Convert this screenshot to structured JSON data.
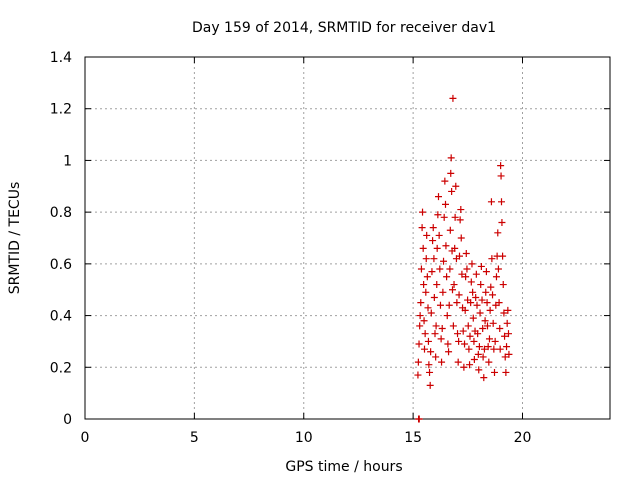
{
  "chart_data": {
    "type": "scatter",
    "title": "Day 159 of 2014, SRMTID for receiver dav1",
    "xlabel": "GPS time / hours",
    "ylabel": "SRMTID / TECUs",
    "xlim": [
      0,
      24
    ],
    "ylim": [
      0,
      1.4
    ],
    "xticks": [
      0,
      5,
      10,
      15,
      20
    ],
    "xtick_labels": [
      "0",
      "5",
      "10",
      "15",
      "20"
    ],
    "yticks": [
      0,
      0.2,
      0.4,
      0.6,
      0.8,
      1.0,
      1.2,
      1.4
    ],
    "ytick_labels": [
      "0",
      "0.2",
      "0.4",
      "0.6",
      "0.8",
      "1",
      "1.2",
      "1.4"
    ],
    "grid": true,
    "marker": "+",
    "color": "#cc0000",
    "series": [
      {
        "name": "dav1",
        "points": [
          [
            15.25,
            0.0
          ],
          [
            15.28,
            0.0
          ],
          [
            15.22,
            0.17
          ],
          [
            15.24,
            0.22
          ],
          [
            15.27,
            0.29
          ],
          [
            15.3,
            0.36
          ],
          [
            15.32,
            0.4
          ],
          [
            15.35,
            0.45
          ],
          [
            15.38,
            0.58
          ],
          [
            15.41,
            0.74
          ],
          [
            15.43,
            0.8
          ],
          [
            15.46,
            0.66
          ],
          [
            15.48,
            0.52
          ],
          [
            15.5,
            0.38
          ],
          [
            15.52,
            0.27
          ],
          [
            15.55,
            0.33
          ],
          [
            15.58,
            0.49
          ],
          [
            15.6,
            0.62
          ],
          [
            15.62,
            0.71
          ],
          [
            15.65,
            0.55
          ],
          [
            15.68,
            0.43
          ],
          [
            15.7,
            0.3
          ],
          [
            15.72,
            0.21
          ],
          [
            15.75,
            0.18
          ],
          [
            15.78,
            0.13
          ],
          [
            15.8,
            0.26
          ],
          [
            15.83,
            0.41
          ],
          [
            15.86,
            0.57
          ],
          [
            15.89,
            0.69
          ],
          [
            15.92,
            0.74
          ],
          [
            15.95,
            0.62
          ],
          [
            15.97,
            0.47
          ],
          [
            16.0,
            0.33
          ],
          [
            16.03,
            0.24
          ],
          [
            16.05,
            0.36
          ],
          [
            16.08,
            0.52
          ],
          [
            16.1,
            0.66
          ],
          [
            16.13,
            0.79
          ],
          [
            16.16,
            0.86
          ],
          [
            16.19,
            0.71
          ],
          [
            16.22,
            0.58
          ],
          [
            16.25,
            0.44
          ],
          [
            16.28,
            0.31
          ],
          [
            16.3,
            0.22
          ],
          [
            16.33,
            0.35
          ],
          [
            16.36,
            0.49
          ],
          [
            16.39,
            0.61
          ],
          [
            16.42,
            0.78
          ],
          [
            16.45,
            0.92
          ],
          [
            16.48,
            0.83
          ],
          [
            16.5,
            0.67
          ],
          [
            16.53,
            0.55
          ],
          [
            16.56,
            0.4
          ],
          [
            16.59,
            0.29
          ],
          [
            16.62,
            0.26
          ],
          [
            16.65,
            0.44
          ],
          [
            16.68,
            0.58
          ],
          [
            16.7,
            0.73
          ],
          [
            16.72,
            0.95
          ],
          [
            16.74,
            1.01
          ],
          [
            16.76,
            0.88
          ],
          [
            16.78,
            0.65
          ],
          [
            16.8,
            0.5
          ],
          [
            16.82,
            1.24
          ],
          [
            16.84,
            0.36
          ],
          [
            16.87,
            0.52
          ],
          [
            16.9,
            0.66
          ],
          [
            16.92,
            0.78
          ],
          [
            16.95,
            0.9
          ],
          [
            16.98,
            0.62
          ],
          [
            17.0,
            0.45
          ],
          [
            17.03,
            0.33
          ],
          [
            17.06,
            0.22
          ],
          [
            17.08,
            0.3
          ],
          [
            17.1,
            0.48
          ],
          [
            17.12,
            0.63
          ],
          [
            17.15,
            0.77
          ],
          [
            17.18,
            0.81
          ],
          [
            17.2,
            0.7
          ],
          [
            17.23,
            0.56
          ],
          [
            17.26,
            0.43
          ],
          [
            17.29,
            0.34
          ],
          [
            17.32,
            0.2
          ],
          [
            17.35,
            0.29
          ],
          [
            17.38,
            0.42
          ],
          [
            17.4,
            0.55
          ],
          [
            17.43,
            0.64
          ],
          [
            17.46,
            0.58
          ],
          [
            17.49,
            0.46
          ],
          [
            17.52,
            0.36
          ],
          [
            17.55,
            0.27
          ],
          [
            17.58,
            0.21
          ],
          [
            17.6,
            0.32
          ],
          [
            17.63,
            0.45
          ],
          [
            17.66,
            0.53
          ],
          [
            17.69,
            0.6
          ],
          [
            17.72,
            0.49
          ],
          [
            17.75,
            0.39
          ],
          [
            17.78,
            0.3
          ],
          [
            17.8,
            0.23
          ],
          [
            17.83,
            0.34
          ],
          [
            17.86,
            0.47
          ],
          [
            17.89,
            0.56
          ],
          [
            17.92,
            0.44
          ],
          [
            17.95,
            0.33
          ],
          [
            17.98,
            0.25
          ],
          [
            18.0,
            0.19
          ],
          [
            18.03,
            0.28
          ],
          [
            18.06,
            0.41
          ],
          [
            18.09,
            0.52
          ],
          [
            18.12,
            0.59
          ],
          [
            18.15,
            0.46
          ],
          [
            18.18,
            0.35
          ],
          [
            18.2,
            0.24
          ],
          [
            18.23,
            0.16
          ],
          [
            18.26,
            0.27
          ],
          [
            18.29,
            0.38
          ],
          [
            18.32,
            0.49
          ],
          [
            18.35,
            0.57
          ],
          [
            18.38,
            0.45
          ],
          [
            18.4,
            0.36
          ],
          [
            18.43,
            0.28
          ],
          [
            18.46,
            0.22
          ],
          [
            18.49,
            0.31
          ],
          [
            18.52,
            0.42
          ],
          [
            18.55,
            0.51
          ],
          [
            18.58,
            0.84
          ],
          [
            18.6,
            0.62
          ],
          [
            18.63,
            0.48
          ],
          [
            18.66,
            0.37
          ],
          [
            18.69,
            0.27
          ],
          [
            18.72,
            0.18
          ],
          [
            18.75,
            0.3
          ],
          [
            18.78,
            0.44
          ],
          [
            18.81,
            0.55
          ],
          [
            18.84,
            0.63
          ],
          [
            18.87,
            0.72
          ],
          [
            18.9,
            0.58
          ],
          [
            18.93,
            0.45
          ],
          [
            18.96,
            0.35
          ],
          [
            18.98,
            0.27
          ],
          [
            19.0,
            0.98
          ],
          [
            19.02,
            0.94
          ],
          [
            19.04,
            0.84
          ],
          [
            19.06,
            0.76
          ],
          [
            19.09,
            0.63
          ],
          [
            19.12,
            0.52
          ],
          [
            19.15,
            0.41
          ],
          [
            19.18,
            0.32
          ],
          [
            19.21,
            0.24
          ],
          [
            19.24,
            0.18
          ],
          [
            19.27,
            0.28
          ],
          [
            19.3,
            0.37
          ],
          [
            19.33,
            0.42
          ],
          [
            19.36,
            0.33
          ],
          [
            19.38,
            0.25
          ]
        ]
      }
    ]
  }
}
